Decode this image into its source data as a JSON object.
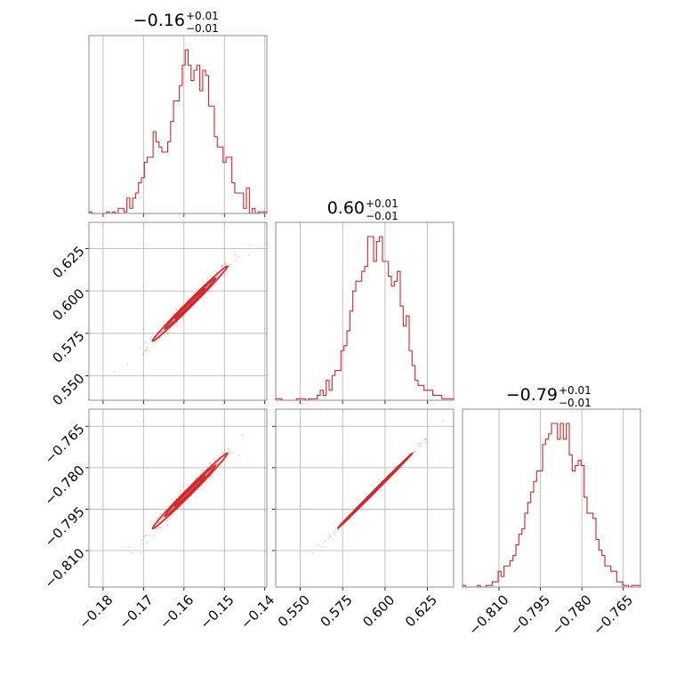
{
  "chart_data": {
    "type": "corner",
    "color": "#d62728",
    "grid": true,
    "panels": [
      {
        "id": "hist0",
        "type": "histogram",
        "title": {
          "value": "−0.16",
          "sup": "+0.01",
          "sub": "−0.01"
        },
        "xlim": [
          -0.1835,
          -0.1395
        ],
        "density": [
          0.3,
          0,
          0,
          0,
          0,
          0,
          0.3,
          0,
          0.3,
          0,
          1,
          1,
          0.3,
          3,
          1,
          3,
          4,
          6,
          7,
          10,
          11,
          11,
          16,
          14,
          13,
          12,
          12,
          14,
          18,
          22,
          22,
          25,
          29,
          32,
          29,
          26,
          28,
          29,
          24,
          28,
          27,
          21,
          21,
          15,
          13,
          13,
          10,
          11,
          11,
          6,
          4,
          4,
          4,
          1,
          5,
          0,
          1,
          0,
          0.3,
          0.3,
          0.3
        ]
      },
      {
        "id": "hist1",
        "type": "histogram",
        "title": {
          "value": "0.60",
          "sup": "+0.01",
          "sub": "−0.01"
        },
        "xlim": [
          0.5356,
          0.6404
        ],
        "density": [
          0.3,
          0.3,
          0,
          0,
          0,
          0,
          0,
          0.3,
          0.3,
          0.3,
          0,
          0.3,
          0.3,
          0.3,
          1,
          2,
          1,
          4,
          2,
          5,
          6,
          6,
          10,
          11,
          14,
          18,
          22,
          24,
          24,
          26,
          27,
          33,
          33,
          28,
          32,
          33,
          28,
          28,
          25,
          23,
          24,
          26,
          19,
          15,
          17,
          10,
          7,
          4,
          3,
          3,
          2,
          2,
          2,
          1,
          1,
          1,
          0.3,
          0.3,
          0.3,
          0.3
        ]
      },
      {
        "id": "hist2",
        "type": "histogram",
        "title": {
          "value": "−0.79",
          "sup": "+0.01",
          "sub": "−0.01"
        },
        "xlim": [
          -0.8232,
          -0.7588
        ],
        "density": [
          0.3,
          0,
          0,
          0,
          0,
          0.3,
          0,
          0,
          0.3,
          0.3,
          1,
          1,
          3,
          2,
          4,
          4,
          5,
          6,
          8,
          10,
          11,
          14,
          16,
          18,
          20,
          22,
          22,
          27,
          28,
          29,
          31,
          31,
          28,
          31,
          28,
          31,
          25,
          22,
          23,
          24,
          23,
          17,
          14,
          14,
          13,
          9,
          7,
          6,
          4,
          4,
          3,
          3,
          1,
          1,
          0.3,
          0.3,
          0,
          0.3,
          0.3,
          0.3
        ]
      },
      {
        "id": "scatter10",
        "type": "corner-2d",
        "xlim": [
          -0.1835,
          -0.1395
        ],
        "ylim": [
          0.5356,
          0.6404
        ],
        "center": [
          -0.1585,
          0.5925
        ],
        "direction": [
          0.00465,
          0.011
        ],
        "width": 0.00135
      },
      {
        "id": "scatter20",
        "type": "corner-2d",
        "xlim": [
          -0.1835,
          -0.1395
        ],
        "ylim": [
          -0.8232,
          -0.7588
        ],
        "center": [
          -0.1585,
          -0.7884
        ],
        "direction": [
          0.00465,
          0.0068
        ],
        "width": 0.0009
      },
      {
        "id": "scatter21",
        "type": "corner-2d",
        "xlim": [
          0.5356,
          0.6404
        ],
        "ylim": [
          -0.8232,
          -0.7588
        ],
        "center": [
          0.594,
          -0.7884
        ],
        "direction": [
          0.011,
          0.0068
        ],
        "width": 0.0003
      }
    ],
    "xticks": {
      "col0": [
        "−0.18",
        "−0.17",
        "−0.16",
        "−0.15",
        "−0.14"
      ],
      "col1": [
        "0.550",
        "0.575",
        "0.600",
        "0.625"
      ],
      "col2": [
        "−0.810",
        "−0.795",
        "−0.780",
        "−0.765"
      ]
    },
    "xtick_values": {
      "col0": [
        -0.18,
        -0.17,
        -0.16,
        -0.15,
        -0.14
      ],
      "col1": [
        0.55,
        0.575,
        0.6,
        0.625
      ],
      "col2": [
        -0.81,
        -0.795,
        -0.78,
        -0.765
      ]
    },
    "yticks": {
      "row1": [
        "0.625",
        "0.600",
        "0.575",
        "0.550"
      ],
      "row2": [
        "−0.765",
        "−0.780",
        "−0.795",
        "−0.810"
      ]
    },
    "ytick_values": {
      "row1": [
        0.625,
        0.6,
        0.575,
        0.55
      ],
      "row2": [
        -0.765,
        -0.78,
        -0.795,
        -0.81
      ]
    }
  }
}
